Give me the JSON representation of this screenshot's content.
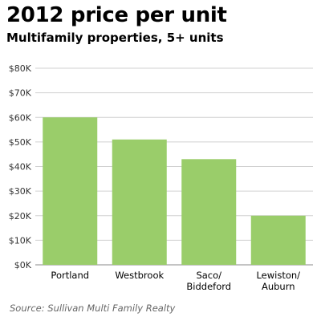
{
  "chart_data": {
    "type": "bar",
    "title": "2012 price per unit",
    "subtitle": "Multifamily properties, 5+ units",
    "categories": [
      [
        "Portland"
      ],
      [
        "Westbrook"
      ],
      [
        "Saco/",
        "Biddeford"
      ],
      [
        "Lewiston/",
        "Auburn"
      ]
    ],
    "values": [
      60000,
      51000,
      43000,
      20000
    ],
    "ylim": [
      0,
      80000
    ],
    "yticks": [
      0,
      10000,
      20000,
      30000,
      40000,
      50000,
      60000,
      70000,
      80000
    ],
    "ytick_labels": [
      "$0K",
      "$10K",
      "$20K",
      "$30K",
      "$40K",
      "$50K",
      "$60K",
      "$70K",
      "$80K"
    ],
    "xlabel": "",
    "ylabel": "",
    "grid": true,
    "legend": "none",
    "colors": {
      "bar": "#9acd6a",
      "grid": "#d0d0d0",
      "axis": "#888888",
      "tick_label": "#333333"
    },
    "source": "Source: Sullivan Multi Family Realty"
  }
}
